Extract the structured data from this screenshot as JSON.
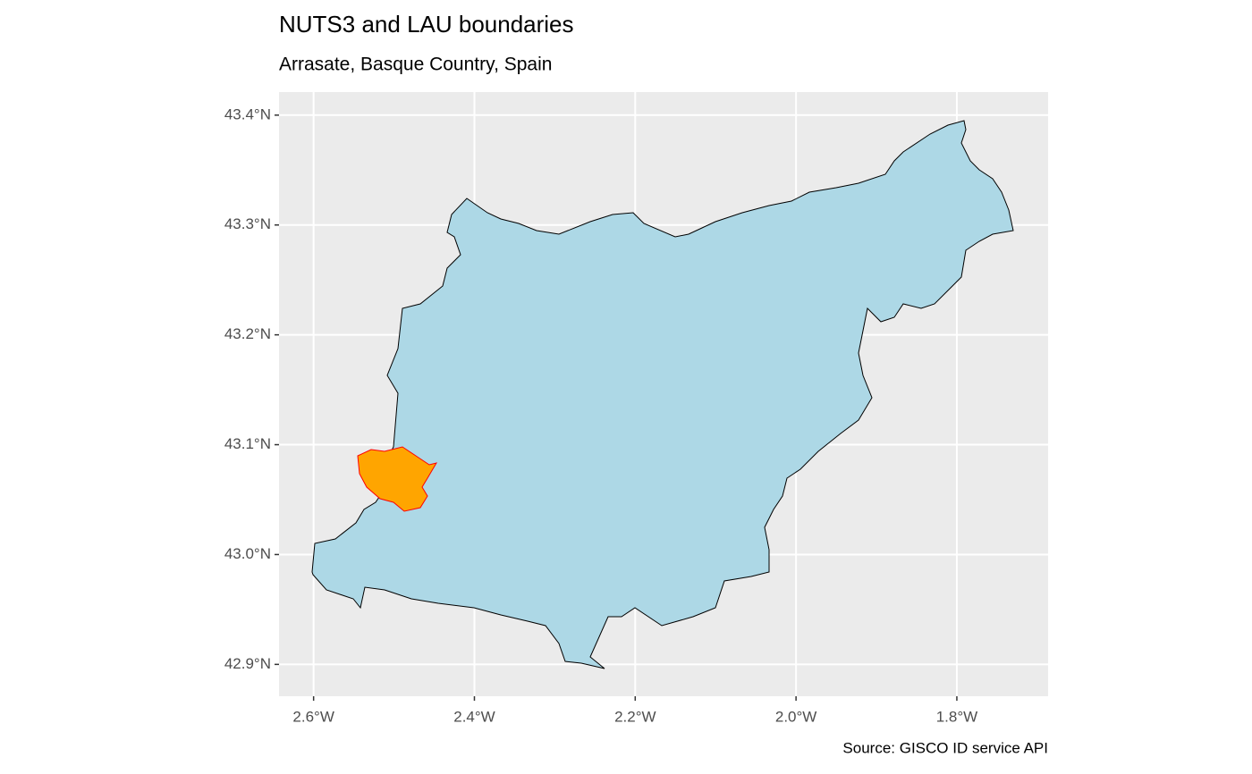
{
  "chart_data": {
    "type": "map",
    "title": "NUTS3 and LAU boundaries",
    "subtitle": "Arrasate, Basque Country, Spain",
    "caption": "Source: GISCO ID service API",
    "xlim": [
      -2.643,
      -1.6865
    ],
    "ylim": [
      42.871,
      43.421
    ],
    "xticks": [
      {
        "value": -2.6,
        "label": "2.6°W"
      },
      {
        "value": -2.4,
        "label": "2.4°W"
      },
      {
        "value": -2.2,
        "label": "2.2°W"
      },
      {
        "value": -2.0,
        "label": "2.0°W"
      },
      {
        "value": -1.8,
        "label": "1.8°W"
      }
    ],
    "yticks": [
      {
        "value": 42.9,
        "label": "42.9°N"
      },
      {
        "value": 43.0,
        "label": "43.0°N"
      },
      {
        "value": 43.1,
        "label": "43.1°N"
      },
      {
        "value": 43.2,
        "label": "43.2°N"
      },
      {
        "value": 43.3,
        "label": "43.3°N"
      },
      {
        "value": 43.4,
        "label": "43.4°N"
      }
    ],
    "grid": true
  }
}
